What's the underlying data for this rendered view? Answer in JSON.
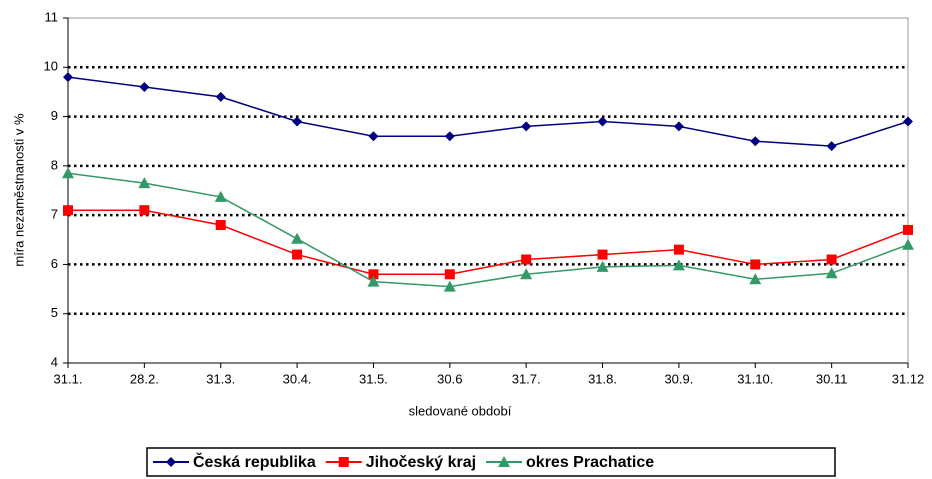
{
  "chart_data": {
    "type": "line",
    "categories": [
      "31.1.",
      "28.2.",
      "31.3.",
      "30.4.",
      "31.5.",
      "30.6",
      "31.7.",
      "31.8.",
      "30.9.",
      "31.10.",
      "30.11",
      "31.12"
    ],
    "series": [
      {
        "name": "Česká republika",
        "color": "#000080",
        "marker": "diamond",
        "values": [
          9.8,
          9.6,
          9.4,
          8.9,
          8.6,
          8.6,
          8.8,
          8.9,
          8.8,
          8.5,
          8.4,
          8.9
        ]
      },
      {
        "name": "Jihočeský kraj",
        "color": "#ff0000",
        "marker": "square",
        "values": [
          7.1,
          7.1,
          6.8,
          6.2,
          5.8,
          5.8,
          6.1,
          6.2,
          6.3,
          6.0,
          6.1,
          6.7
        ]
      },
      {
        "name": "okres Prachatice",
        "color": "#339966",
        "marker": "triangle",
        "values": [
          7.85,
          7.65,
          7.37,
          6.52,
          5.65,
          5.55,
          5.8,
          5.95,
          5.98,
          5.7,
          5.82,
          6.4
        ]
      }
    ],
    "xlabel": "sledované období",
    "ylabel": "míra nezaměstnanosti v %",
    "ylim": [
      4,
      11
    ],
    "yticks": [
      4,
      5,
      6,
      7,
      8,
      9,
      10,
      11
    ],
    "grid": true,
    "legend": "bottom"
  }
}
